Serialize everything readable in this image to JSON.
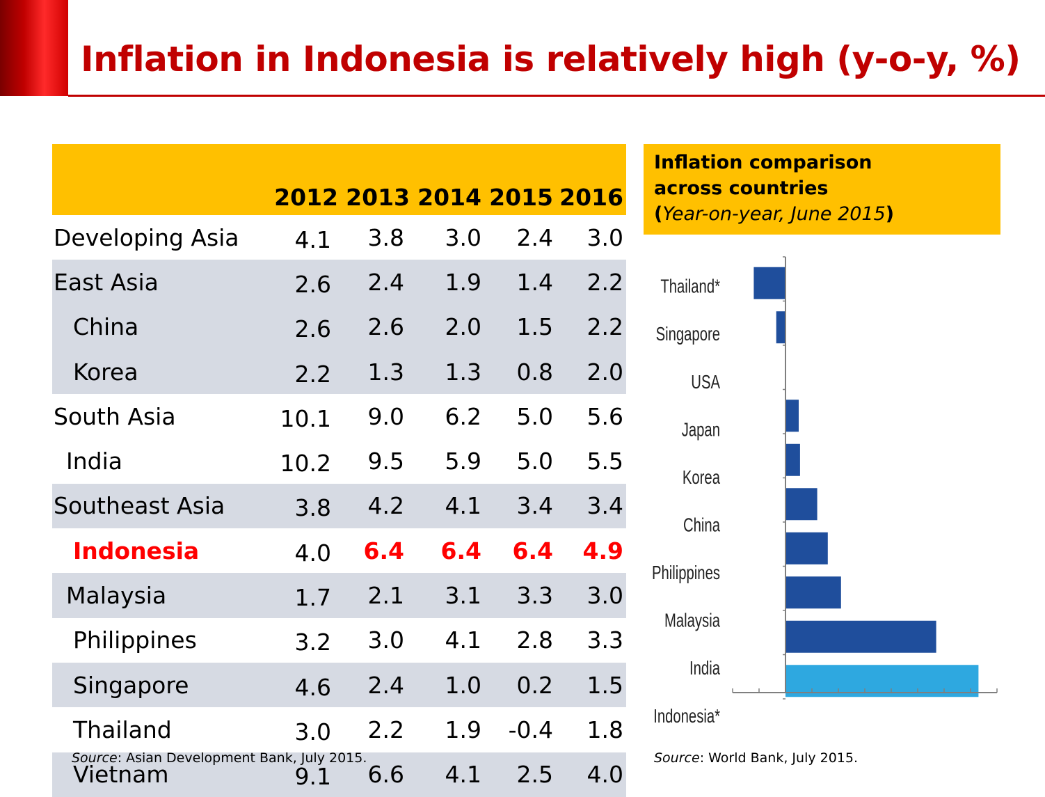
{
  "title": "Inflation in Indonesia is relatively high (y-o-y, %)",
  "table": {
    "columns": [
      "2012",
      "2013",
      "2014",
      "2015",
      "2016"
    ],
    "rows": [
      {
        "label": "Developing Asia",
        "values": [
          "4.1",
          "3.8",
          "3.0",
          "2.4",
          "3.0"
        ]
      },
      {
        "label": "East Asia",
        "values": [
          "2.6",
          "2.4",
          "1.9",
          "1.4",
          "2.2"
        ]
      },
      {
        "label": "China",
        "values": [
          "2.6",
          "2.6",
          "2.0",
          "1.5",
          "2.2"
        ]
      },
      {
        "label": "Korea",
        "values": [
          "2.2",
          "1.3",
          "1.3",
          "0.8",
          "2.0"
        ]
      },
      {
        "label": "South Asia",
        "values": [
          "10.1",
          "9.0",
          "6.2",
          "5.0",
          "5.6"
        ]
      },
      {
        "label": "India",
        "values": [
          "10.2",
          "9.5",
          "5.9",
          "5.0",
          "5.5"
        ]
      },
      {
        "label": "Southeast Asia",
        "values": [
          "3.8",
          "4.2",
          "4.1",
          "3.4",
          "3.4"
        ]
      },
      {
        "label": "Indonesia",
        "values": [
          "4.0",
          "6.4",
          "6.4",
          "6.4",
          "4.9"
        ]
      },
      {
        "label": "Malaysia",
        "values": [
          "1.7",
          "2.1",
          "3.1",
          "3.3",
          "3.0"
        ]
      },
      {
        "label": "Philippines",
        "values": [
          "3.2",
          "3.0",
          "4.1",
          "2.8",
          "3.3"
        ]
      },
      {
        "label": "Singapore",
        "values": [
          "4.6",
          "2.4",
          "1.0",
          "0.2",
          "1.5"
        ]
      },
      {
        "label": "Thailand",
        "values": [
          "3.0",
          "2.2",
          "1.9",
          "-0.4",
          "1.8"
        ]
      },
      {
        "label": "Vietnam",
        "values": [
          "9.1",
          "6.6",
          "4.1",
          "2.5",
          "4.0"
        ]
      }
    ],
    "source_prefix": "Source",
    "source_text": ": Asian Development Bank, July 2015."
  },
  "chart_header": {
    "line1": "Inflation comparison",
    "line2": "across countries",
    "line3_open": "(",
    "line3_italic": "Year-on-year, June 2015",
    "line3_close": ")"
  },
  "chart_data": {
    "type": "bar",
    "orientation": "horizontal",
    "categories": [
      "Thailand*",
      "Singapore",
      "USA",
      "Japan",
      "Korea",
      "China",
      "Philippines",
      "Malaysia",
      "India",
      "Indonesia*"
    ],
    "values": [
      -1.2,
      -0.35,
      0.0,
      0.5,
      0.55,
      1.2,
      1.6,
      2.1,
      5.7,
      7.3
    ],
    "xlim": [
      -2,
      8
    ],
    "xticks": [
      "-2",
      "-1",
      "0",
      "1",
      "2",
      "3",
      "4",
      "5",
      "6",
      "7",
      "8"
    ],
    "colors": {
      "default": "#1f4e9c",
      "highlight": "#2ea8e0"
    },
    "highlight_category": "Indonesia*",
    "grid": false,
    "legend": "none"
  },
  "chart_source": {
    "prefix": "Source",
    "text": ": World Bank, July 2015."
  }
}
